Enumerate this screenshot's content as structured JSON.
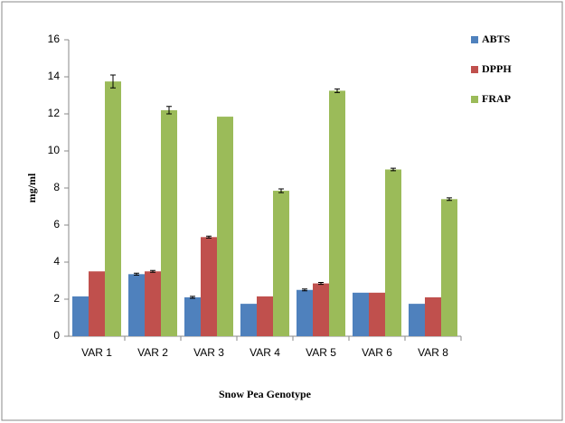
{
  "chart_data": {
    "type": "bar",
    "categories": [
      "VAR 1",
      "VAR 2",
      "VAR 3",
      "VAR 4",
      "VAR 5",
      "VAR 6",
      "VAR 8"
    ],
    "series": [
      {
        "name": "ABTS",
        "color": "#4f81bd",
        "values": [
          2.15,
          3.35,
          2.1,
          1.75,
          2.5,
          2.35,
          1.75
        ],
        "errors": [
          null,
          0.05,
          0.05,
          null,
          0.05,
          null,
          null
        ]
      },
      {
        "name": "DPPH",
        "color": "#c0504d",
        "values": [
          3.5,
          3.5,
          5.35,
          2.15,
          2.85,
          2.35,
          2.1
        ],
        "errors": [
          null,
          0.05,
          0.05,
          null,
          0.05,
          null,
          null
        ]
      },
      {
        "name": "FRAP",
        "color": "#9bbb59",
        "values": [
          13.75,
          12.2,
          11.85,
          7.85,
          13.25,
          9.0,
          7.4
        ],
        "errors": [
          0.35,
          0.2,
          null,
          0.1,
          0.1,
          0.07,
          0.07
        ]
      }
    ],
    "ylabel": "mg/ml",
    "xlabel": "Snow Pea Genotype",
    "ylim": [
      0,
      16
    ],
    "yticks": [
      0,
      2,
      4,
      6,
      8,
      10,
      12,
      14,
      16
    ],
    "legend": "right"
  }
}
